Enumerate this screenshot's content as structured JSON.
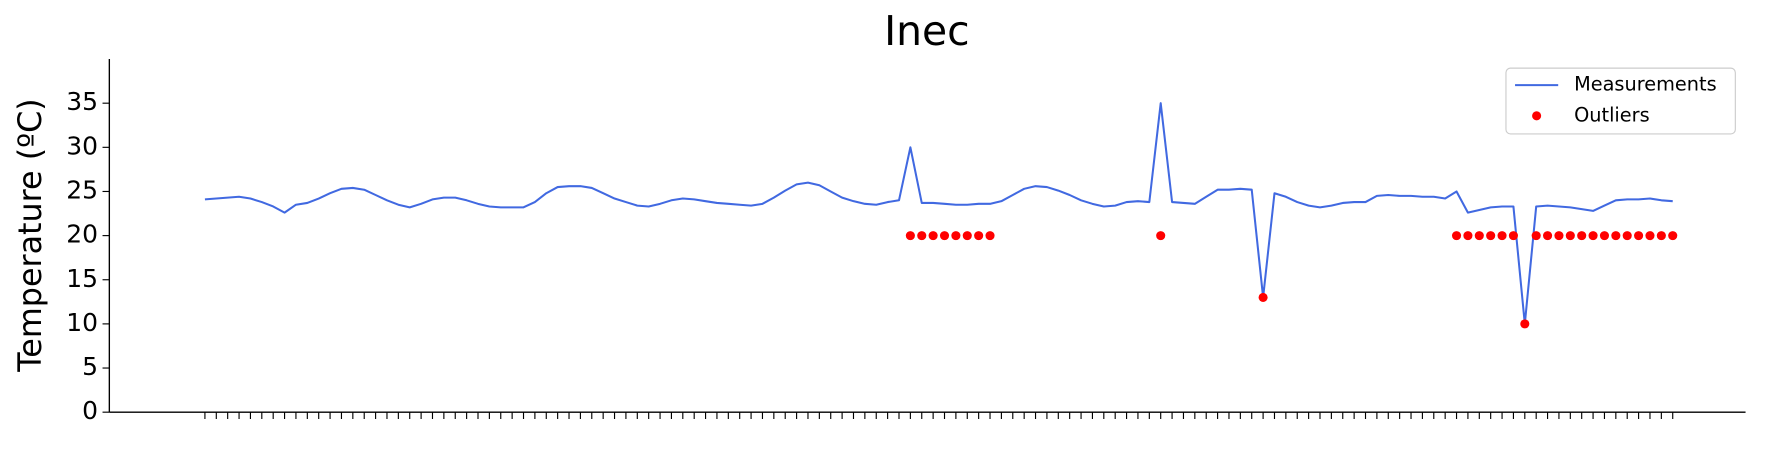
{
  "chart_data": {
    "type": "line",
    "title": "Inec",
    "y_label": "Temperature (ºC)",
    "x": [
      0,
      1,
      2,
      3,
      4,
      5,
      6,
      7,
      8,
      9,
      10,
      11,
      12,
      13,
      14,
      15,
      16,
      17,
      18,
      19,
      20,
      21,
      22,
      23,
      24,
      25,
      26,
      27,
      28,
      29,
      30,
      31,
      32,
      33,
      34,
      35,
      36,
      37,
      38,
      39,
      40,
      41,
      42,
      43,
      44,
      45,
      46,
      47,
      48,
      49,
      50,
      51,
      52,
      53,
      54,
      55,
      56,
      57,
      58,
      59,
      60,
      61,
      62,
      63,
      64,
      65,
      66,
      67,
      68,
      69,
      70,
      71,
      72,
      73,
      74,
      75,
      76,
      77,
      78,
      79,
      80,
      81,
      82,
      83,
      84,
      85,
      86,
      87,
      88,
      89,
      90,
      91,
      92,
      93,
      94,
      95,
      96,
      97,
      98,
      99,
      100,
      101,
      102,
      103,
      104,
      105,
      106,
      107,
      108,
      109,
      110,
      111,
      112,
      113,
      114,
      115,
      116,
      117,
      118,
      119,
      120,
      121,
      122,
      123,
      124,
      125,
      126,
      127,
      128,
      129
    ],
    "xlim": [
      -8.4,
      135.4
    ],
    "ylim": [
      0,
      40
    ],
    "yticks": [
      0,
      5,
      10,
      15,
      20,
      25,
      30,
      35
    ],
    "legend": "upper right",
    "series": [
      {
        "name": "Measurements",
        "color": "#4169e1",
        "kind": "line",
        "values": [
          24.1,
          24.2,
          24.3,
          24.4,
          24.2,
          23.8,
          23.3,
          22.6,
          23.5,
          23.7,
          24.2,
          24.8,
          25.3,
          25.4,
          25.2,
          24.6,
          24.0,
          23.5,
          23.2,
          23.6,
          24.1,
          24.3,
          24.3,
          24.0,
          23.6,
          23.3,
          23.2,
          23.2,
          23.2,
          23.8,
          24.8,
          25.5,
          25.6,
          25.6,
          25.4,
          24.8,
          24.2,
          23.8,
          23.4,
          23.3,
          23.6,
          24.0,
          24.2,
          24.1,
          23.9,
          23.7,
          23.6,
          23.5,
          23.4,
          23.6,
          24.3,
          25.1,
          25.8,
          26.0,
          25.7,
          25.0,
          24.3,
          23.9,
          23.6,
          23.5,
          23.8,
          24.0,
          30.0,
          23.7,
          23.7,
          23.6,
          23.5,
          23.5,
          23.6,
          23.6,
          23.9,
          24.6,
          25.3,
          25.6,
          25.5,
          25.1,
          24.6,
          24.0,
          23.6,
          23.3,
          23.4,
          23.8,
          23.9,
          23.8,
          35.0,
          23.8,
          23.7,
          23.6,
          24.4,
          25.2,
          25.2,
          25.3,
          25.2,
          13.0,
          24.8,
          24.4,
          23.8,
          23.4,
          23.2,
          23.4,
          23.7,
          23.8,
          23.8,
          24.5,
          24.6,
          24.5,
          24.5,
          24.4,
          24.4,
          24.2,
          25.0,
          22.6,
          22.9,
          23.2,
          23.3,
          23.3,
          10.0,
          23.3,
          23.4,
          23.3,
          23.2,
          23.0,
          22.8,
          23.4,
          24.0,
          24.1,
          24.1,
          24.2,
          24.0,
          23.9
        ]
      },
      {
        "name": "Outliers",
        "color": "#ff0000",
        "kind": "scatter",
        "x": [
          62,
          63,
          64,
          65,
          66,
          67,
          68,
          69,
          84,
          93,
          110,
          111,
          112,
          113,
          114,
          115,
          116,
          117,
          118,
          119,
          120,
          121,
          122,
          123,
          124,
          125,
          126,
          127,
          128,
          129
        ],
        "values": [
          20,
          20,
          20,
          20,
          20,
          20,
          20,
          20,
          20,
          13,
          20,
          20,
          20,
          20,
          20,
          20,
          10,
          20,
          20,
          20,
          20,
          20,
          20,
          20,
          20,
          20,
          20,
          20,
          20,
          20
        ]
      }
    ]
  }
}
